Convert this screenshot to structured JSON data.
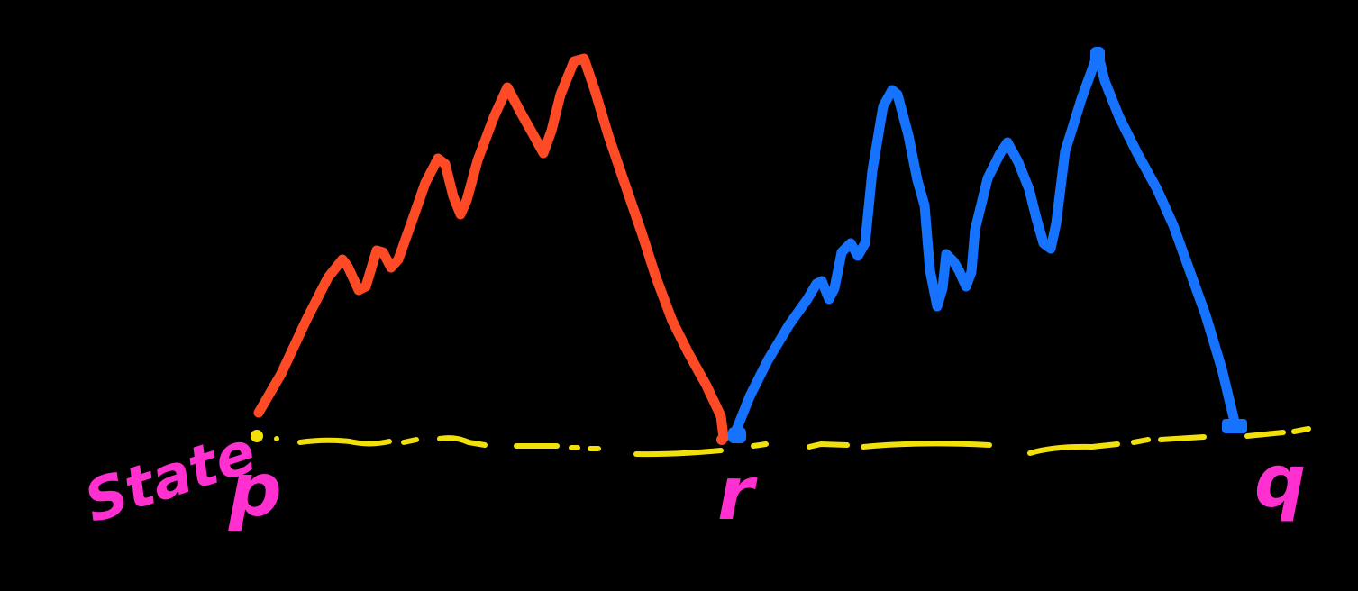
{
  "diagram": {
    "axis_label": "State",
    "points": [
      {
        "id": "p",
        "label": "p"
      },
      {
        "id": "r",
        "label": "r"
      },
      {
        "id": "q",
        "label": "q"
      }
    ],
    "colors": {
      "background": "#000000",
      "baseline": "#f2e00b",
      "marker_p": "#f2e00b",
      "red_path": "#ff4a26",
      "blue_path": "#1673ff",
      "labels": "#ff2fd0"
    }
  }
}
